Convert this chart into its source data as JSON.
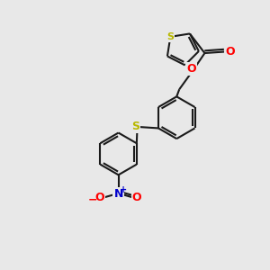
{
  "background_color": "#e8e8e8",
  "bond_color": "#1a1a1a",
  "S_color": "#b8b800",
  "O_color": "#ff0000",
  "N_color": "#0000cc",
  "line_width": 1.5,
  "figsize": [
    3.0,
    3.0
  ],
  "dpi": 100,
  "xlim": [
    0,
    10
  ],
  "ylim": [
    0,
    10
  ]
}
